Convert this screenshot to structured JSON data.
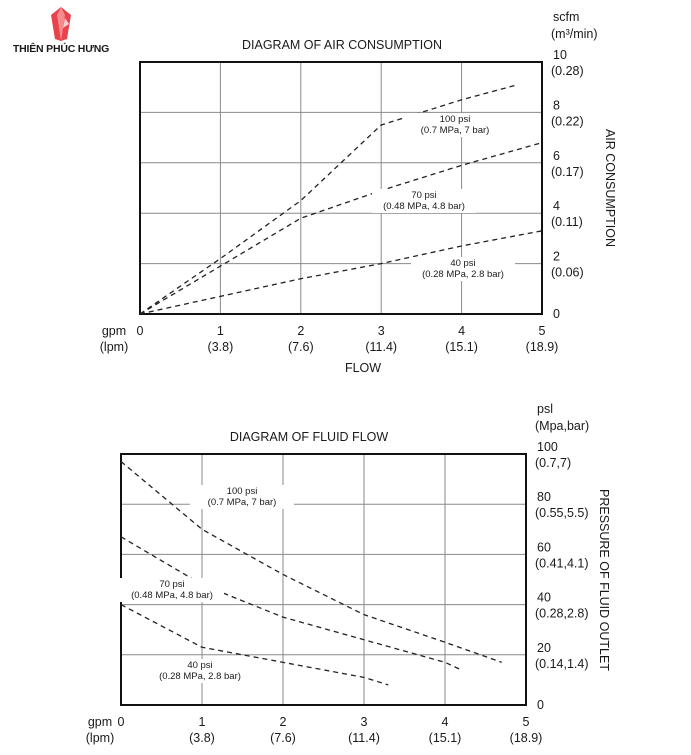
{
  "brand": {
    "name": "THIÊN PHÚC HƯNG",
    "logo_icon": "diamond-logo-icon",
    "accent": "#e8424b"
  },
  "chart_data": [
    {
      "type": "line",
      "title": "DIAGRAM OF AIR CONSUMPTION",
      "xlabel": "FLOW",
      "ylabel": "AIR CONSUMPTION",
      "x_unit_label": "gpm",
      "x_unit_label_alt": "(lpm)",
      "y_unit_label": "scfm",
      "y_unit_label_alt": "(m³/min)",
      "xlim": [
        0,
        5
      ],
      "ylim": [
        0,
        10
      ],
      "grid": true,
      "x_ticks": [
        {
          "value": 0,
          "label": "0",
          "alt": ""
        },
        {
          "value": 1,
          "label": "1",
          "alt": "(3.8)"
        },
        {
          "value": 2,
          "label": "2",
          "alt": "(7.6)"
        },
        {
          "value": 3,
          "label": "3",
          "alt": "(11.4)"
        },
        {
          "value": 4,
          "label": "4",
          "alt": "(15.1)"
        },
        {
          "value": 5,
          "label": "5",
          "alt": "(18.9)"
        }
      ],
      "y_ticks": [
        {
          "value": 0,
          "label": "0",
          "alt": ""
        },
        {
          "value": 2,
          "label": "2",
          "alt": "(0.06)"
        },
        {
          "value": 4,
          "label": "4",
          "alt": "(0.11)"
        },
        {
          "value": 6,
          "label": "6",
          "alt": "(0.17)"
        },
        {
          "value": 8,
          "label": "8",
          "alt": "(0.22)"
        },
        {
          "value": 10,
          "label": "10",
          "alt": "(0.28)"
        }
      ],
      "series": [
        {
          "label": "100 psi",
          "sublabel": "(0.7 MPa, 7 bar)",
          "x": [
            0,
            1,
            2,
            3,
            4,
            4.7
          ],
          "y": [
            0,
            2.2,
            4.5,
            7.5,
            8.5,
            9.1
          ]
        },
        {
          "label": "70 psi",
          "sublabel": "(0.48 MPa, 4.8 bar)",
          "x": [
            0,
            1,
            2,
            3,
            4,
            5
          ],
          "y": [
            0,
            1.9,
            3.8,
            4.9,
            5.9,
            6.8
          ]
        },
        {
          "label": "40 psi",
          "sublabel": "(0.28 MPa, 2.8 bar)",
          "x": [
            0,
            1,
            2,
            3,
            4,
            5
          ],
          "y": [
            0,
            0.7,
            1.4,
            2.0,
            2.7,
            3.3
          ]
        }
      ]
    },
    {
      "type": "line",
      "title": "DIAGRAM OF FLUID FLOW",
      "xlabel": "",
      "ylabel": "PRESSURE OF FLUID OUTLET",
      "x_unit_label": "gpm",
      "x_unit_label_alt": "(lpm)",
      "y_unit_label": "psl",
      "y_unit_label_alt": "(Mpa,bar)",
      "xlim": [
        0,
        5
      ],
      "ylim": [
        0,
        100
      ],
      "grid": true,
      "x_ticks": [
        {
          "value": 0,
          "label": "0",
          "alt": ""
        },
        {
          "value": 1,
          "label": "1",
          "alt": "(3.8)"
        },
        {
          "value": 2,
          "label": "2",
          "alt": "(7.6)"
        },
        {
          "value": 3,
          "label": "3",
          "alt": "(11.4)"
        },
        {
          "value": 4,
          "label": "4",
          "alt": "(15.1)"
        },
        {
          "value": 5,
          "label": "5",
          "alt": "(18.9)"
        }
      ],
      "y_ticks": [
        {
          "value": 0,
          "label": "0",
          "alt": ""
        },
        {
          "value": 20,
          "label": "20",
          "alt": "(0.14,1.4)"
        },
        {
          "value": 40,
          "label": "40",
          "alt": "(0.28,2.8)"
        },
        {
          "value": 60,
          "label": "60",
          "alt": "(0.41,4.1)"
        },
        {
          "value": 80,
          "label": "80",
          "alt": "(0.55,5.5)"
        },
        {
          "value": 100,
          "label": "100",
          "alt": "(0.7,7)"
        }
      ],
      "series": [
        {
          "label": "100 psi",
          "sublabel": "(0.7 MPa, 7 bar)",
          "x": [
            0,
            1,
            2,
            3,
            4,
            4.7
          ],
          "y": [
            97,
            70,
            52,
            36,
            25,
            17
          ]
        },
        {
          "label": "70 psi",
          "sublabel": "(0.48 MPa, 4.8 bar)",
          "x": [
            0,
            1,
            2,
            3,
            4,
            4.2
          ],
          "y": [
            67,
            48,
            35,
            26,
            17,
            14
          ]
        },
        {
          "label": "40 psi",
          "sublabel": "(0.28 MPa, 2.8 bar)",
          "x": [
            0,
            1,
            2,
            3,
            3.3
          ],
          "y": [
            40,
            23,
            17,
            11,
            8
          ]
        }
      ]
    }
  ]
}
